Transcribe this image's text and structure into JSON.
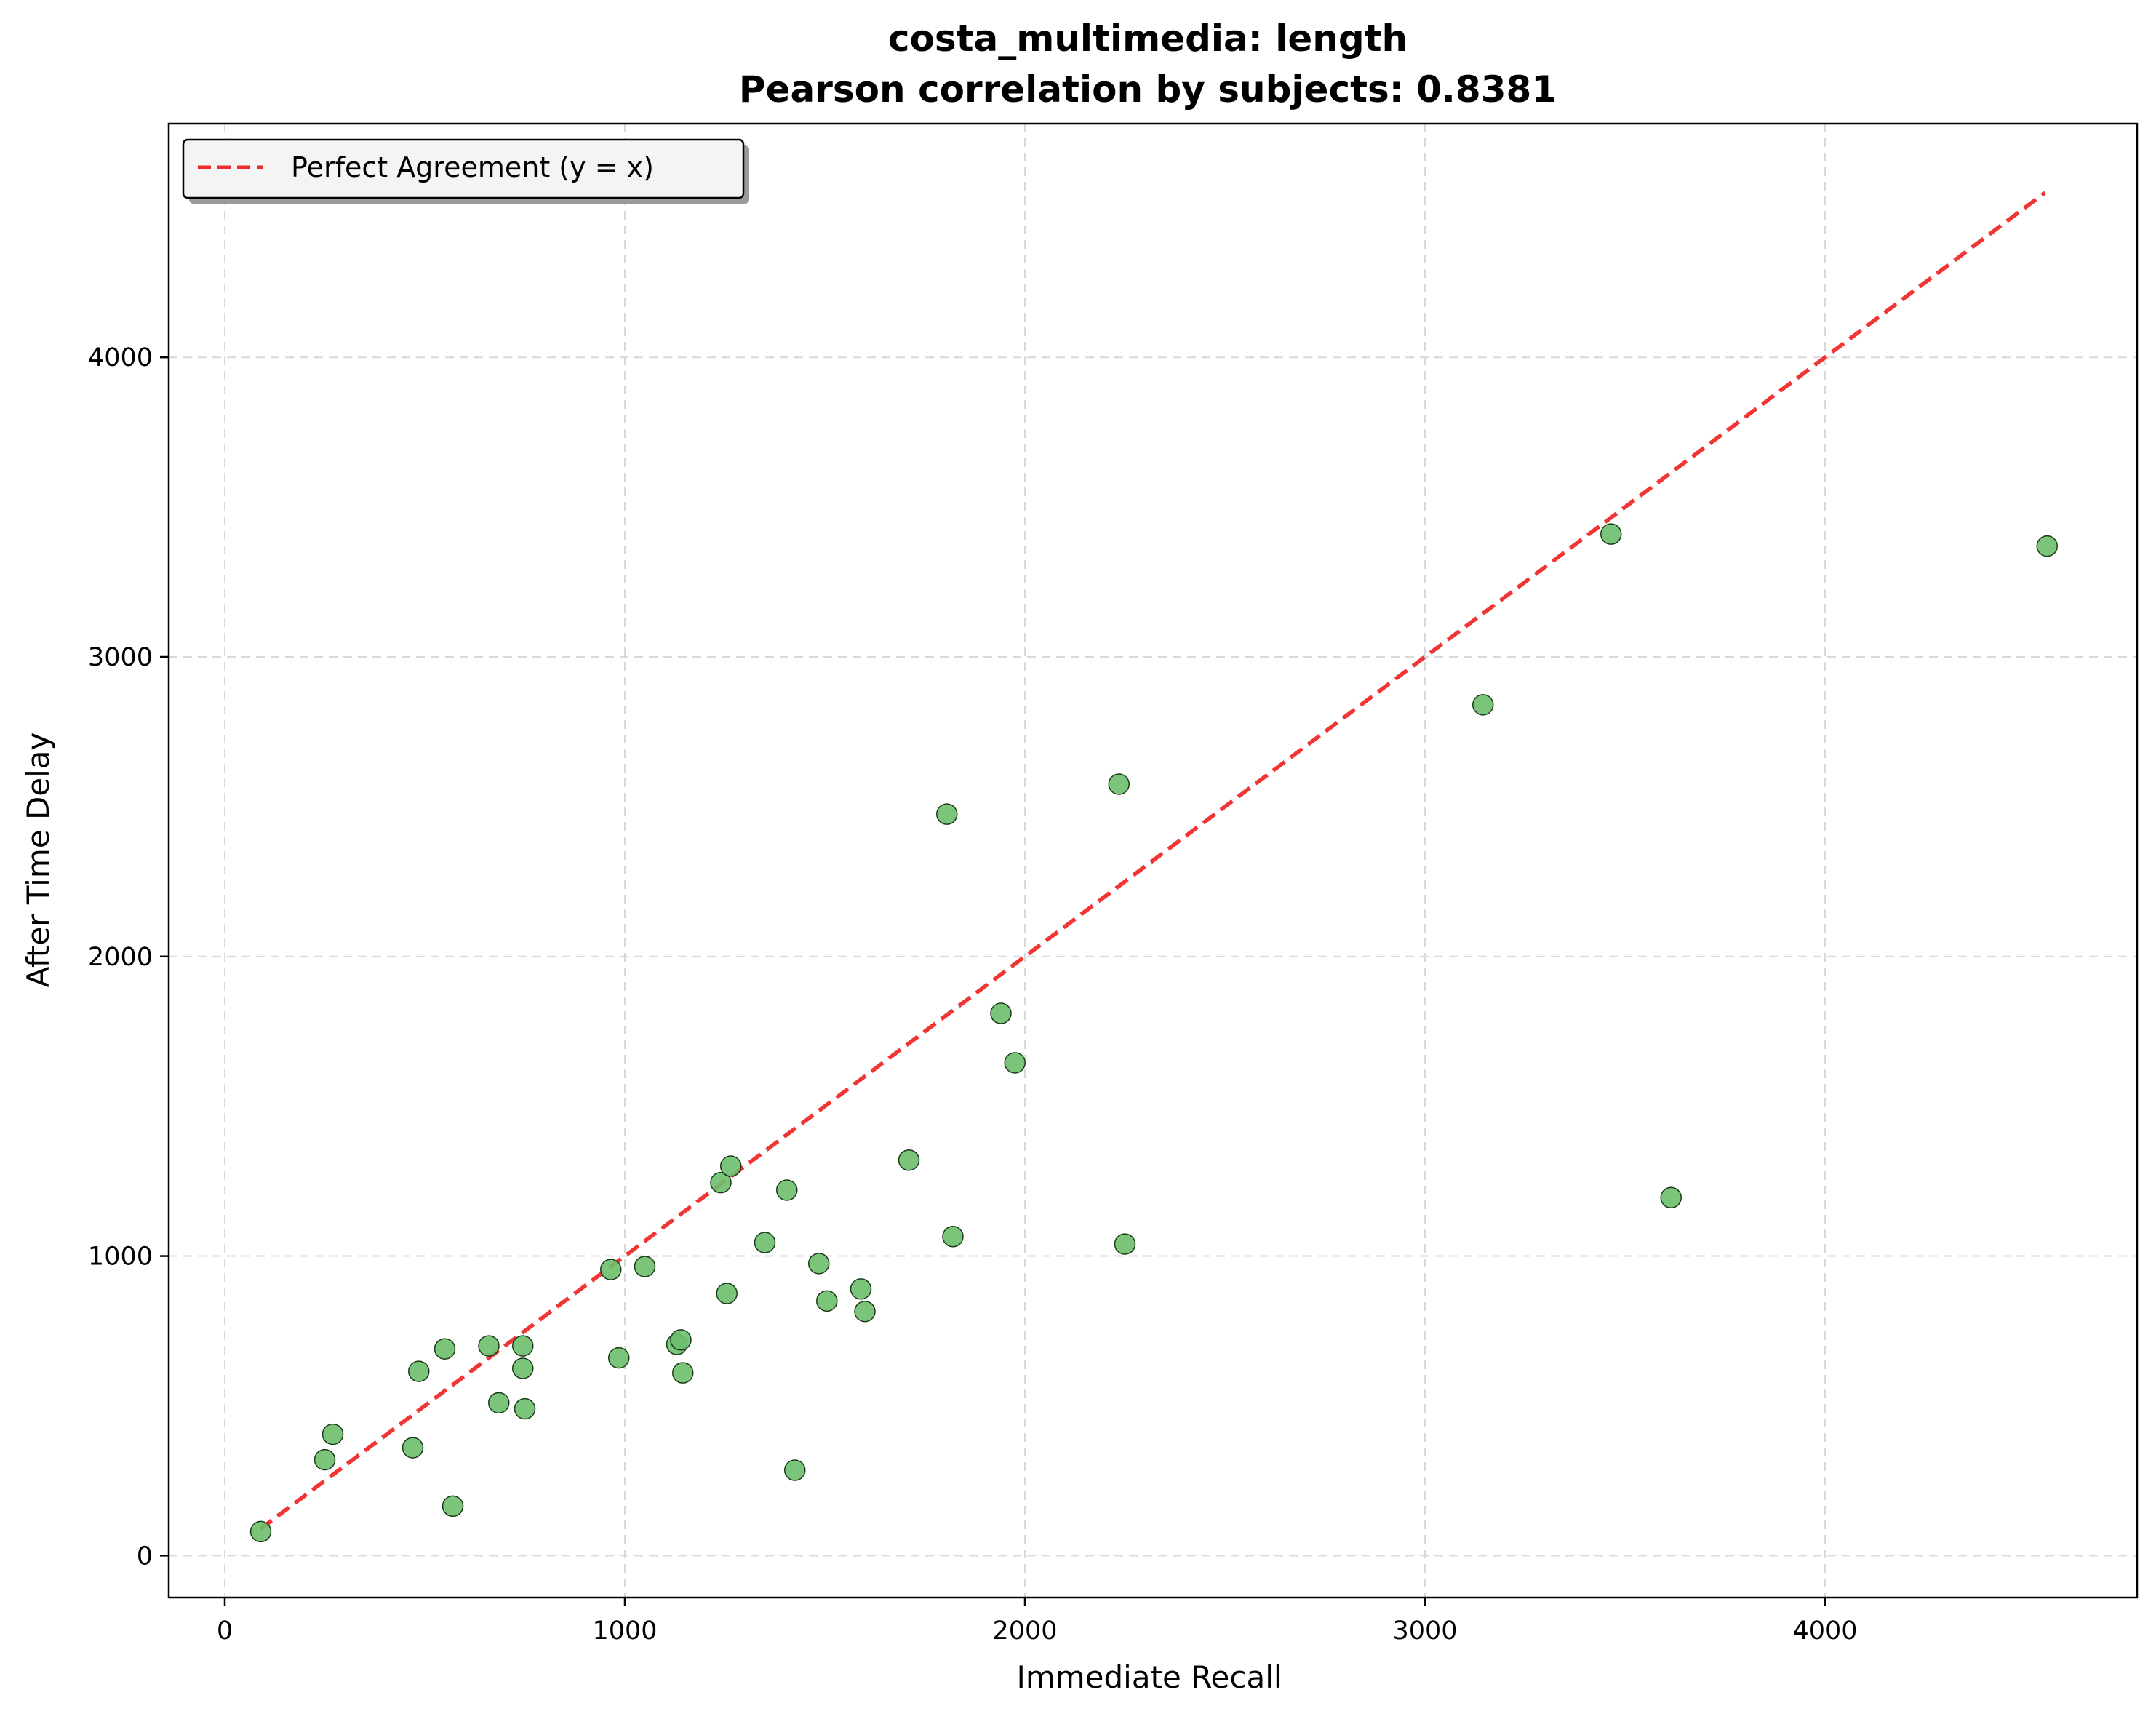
{
  "chart_data": {
    "type": "scatter",
    "title": "costa_multimedia: length",
    "subtitle": "Pearson correlation by subjects: 0.8381",
    "xlabel": "Immediate Recall",
    "ylabel": "After Time Delay",
    "xlim": [
      -140,
      4780
    ],
    "ylim": [
      -140,
      4780
    ],
    "xticks": [
      0,
      1000,
      2000,
      3000,
      4000
    ],
    "yticks": [
      0,
      1000,
      2000,
      3000,
      4000
    ],
    "xtick_labels": [
      "0",
      "1000",
      "2000",
      "3000",
      "4000"
    ],
    "ytick_labels": [
      "0",
      "1000",
      "2000",
      "3000",
      "4000"
    ],
    "grid": true,
    "legend": {
      "position": "top-left",
      "entries": [
        "Perfect Agreement (y = x)"
      ]
    },
    "colors": {
      "points": "#6dbf6d",
      "point_edge": "#1a3a1a",
      "reference_line": "#f02a2a"
    },
    "reference_line": {
      "name": "Perfect Agreement (y = x)",
      "style": "dashed",
      "x": [
        88,
        4550
      ],
      "y": [
        88,
        4550
      ]
    },
    "points": [
      {
        "x": 90,
        "y": 80
      },
      {
        "x": 250,
        "y": 320
      },
      {
        "x": 270,
        "y": 405
      },
      {
        "x": 470,
        "y": 360
      },
      {
        "x": 485,
        "y": 615
      },
      {
        "x": 550,
        "y": 690
      },
      {
        "x": 570,
        "y": 165
      },
      {
        "x": 660,
        "y": 700
      },
      {
        "x": 685,
        "y": 510
      },
      {
        "x": 745,
        "y": 700
      },
      {
        "x": 745,
        "y": 625
      },
      {
        "x": 750,
        "y": 490
      },
      {
        "x": 965,
        "y": 955
      },
      {
        "x": 985,
        "y": 660
      },
      {
        "x": 1050,
        "y": 965
      },
      {
        "x": 1130,
        "y": 705
      },
      {
        "x": 1140,
        "y": 720
      },
      {
        "x": 1145,
        "y": 610
      },
      {
        "x": 1240,
        "y": 1245
      },
      {
        "x": 1255,
        "y": 875
      },
      {
        "x": 1265,
        "y": 1300
      },
      {
        "x": 1350,
        "y": 1045
      },
      {
        "x": 1405,
        "y": 1220
      },
      {
        "x": 1425,
        "y": 285
      },
      {
        "x": 1485,
        "y": 975
      },
      {
        "x": 1505,
        "y": 850
      },
      {
        "x": 1590,
        "y": 890
      },
      {
        "x": 1600,
        "y": 815
      },
      {
        "x": 1710,
        "y": 1320
      },
      {
        "x": 1805,
        "y": 2475
      },
      {
        "x": 1820,
        "y": 1065
      },
      {
        "x": 1940,
        "y": 1810
      },
      {
        "x": 1975,
        "y": 1645
      },
      {
        "x": 2235,
        "y": 2575
      },
      {
        "x": 2250,
        "y": 1040
      },
      {
        "x": 3145,
        "y": 2840
      },
      {
        "x": 3465,
        "y": 3410
      },
      {
        "x": 3615,
        "y": 1195
      },
      {
        "x": 4555,
        "y": 3370
      }
    ]
  }
}
